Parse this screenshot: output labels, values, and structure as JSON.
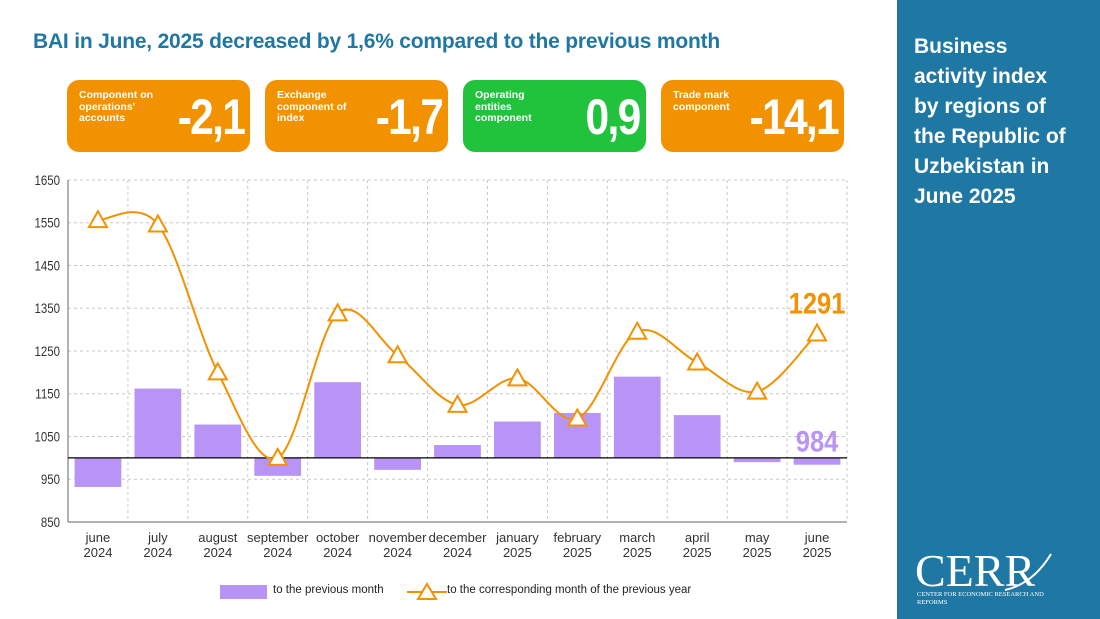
{
  "title": "BAI in June, 2025 decreased by 1,6% compared to the previous month",
  "cards": [
    {
      "label": "Component on operations' accounts",
      "value": "-2,1",
      "color": "#f39200"
    },
    {
      "label": "Exchange component of index",
      "value": "-1,7",
      "color": "#f39200"
    },
    {
      "label": "Operating entities component",
      "value": "0,9",
      "color": "#22c33c"
    },
    {
      "label": "Trade mark component",
      "value": "-14,1",
      "color": "#f39200"
    }
  ],
  "sidebar": {
    "title": "Business activity index by regions of the Republic of Uzbekistan in June 2025",
    "logo_word": "CERR",
    "logo_sub": "Center for Economic Research and Reforms",
    "background": "#1f78a4"
  },
  "legend": {
    "bars_label": "to the previous month",
    "line_label": "to the corresponding month of the previous year"
  },
  "chart_data": {
    "type": "bar+line",
    "categories": [
      [
        "june",
        "2024"
      ],
      [
        "july",
        "2024"
      ],
      [
        "august",
        "2024"
      ],
      [
        "september",
        "2024"
      ],
      [
        "october",
        "2024"
      ],
      [
        "november",
        "2024"
      ],
      [
        "december",
        "2024"
      ],
      [
        "january",
        "2025"
      ],
      [
        "february",
        "2025"
      ],
      [
        "march",
        "2025"
      ],
      [
        "april",
        "2025"
      ],
      [
        "may",
        "2025"
      ],
      [
        "june",
        "2025"
      ]
    ],
    "ylim": [
      850,
      1650
    ],
    "yticks": [
      850,
      950,
      1050,
      1150,
      1250,
      1350,
      1450,
      1550,
      1650
    ],
    "bar_baseline": 1000,
    "grid": true,
    "series": [
      {
        "name": "to the previous month",
        "kind": "bar",
        "color": "#b794f6",
        "values": [
          932,
          1162,
          1078,
          958,
          1177,
          972,
          1030,
          1085,
          1105,
          1190,
          1100,
          990,
          984
        ]
      },
      {
        "name": "to the corresponding month of the previous year",
        "kind": "line",
        "color": "#f39200",
        "values": [
          1556,
          1546,
          1200,
          1000,
          1338,
          1240,
          1124,
          1186,
          1092,
          1295,
          1223,
          1155,
          1291
        ]
      }
    ],
    "annotations": [
      {
        "text": "1291",
        "series": 1,
        "index": 12,
        "color": "#f39200"
      },
      {
        "text": "984",
        "series": 0,
        "index": 12,
        "color": "#b794f6"
      }
    ]
  }
}
